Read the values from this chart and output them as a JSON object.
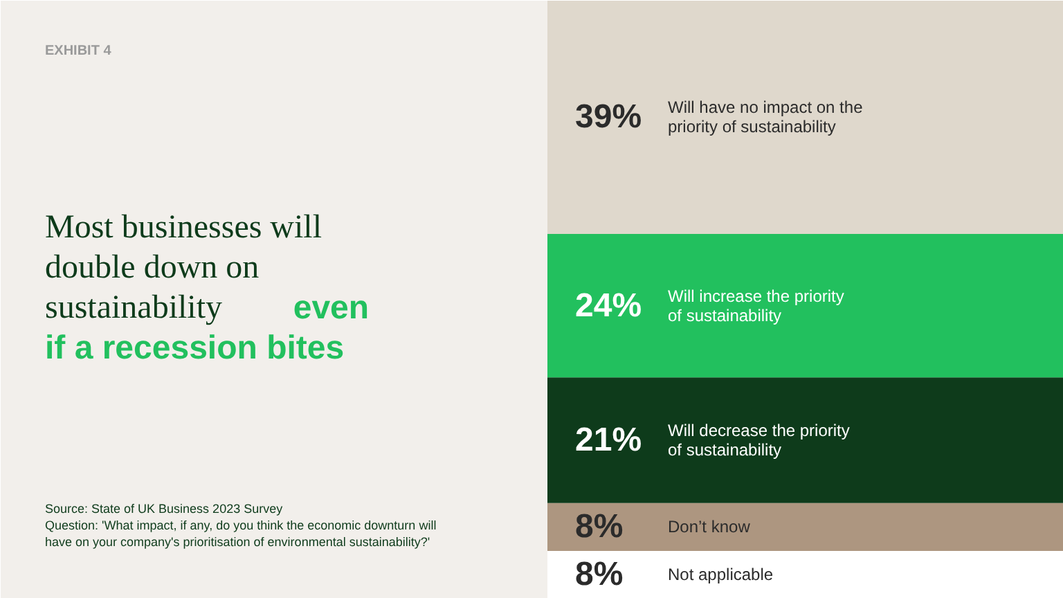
{
  "chart_data": {
    "type": "bar",
    "stacked": true,
    "title": "Most businesses will double down on sustainability",
    "subtitle": "even if a recession bites",
    "categories": [
      null
    ],
    "series": [
      {
        "name": "Not applicable",
        "color": "#ffffff",
        "values": [
          8
        ],
        "value_labels": [
          "8%"
        ]
      },
      {
        "name": "Don’t know",
        "color": "#ad9680",
        "values": [
          8
        ],
        "value_labels": [
          "8%"
        ]
      },
      {
        "name": "Will decrease the priority of sustainability",
        "color": "#0e3b1b",
        "values": [
          21
        ],
        "value_labels": [
          "21%"
        ]
      },
      {
        "name": "Will increase the priority of sustainability",
        "color": "#22c05e",
        "values": [
          24
        ],
        "value_labels": [
          "24%"
        ]
      },
      {
        "name": "Will have no impact on the priority of sustainability",
        "color": "#dfd8cc",
        "values": [
          39
        ],
        "value_labels": [
          "39%"
        ]
      }
    ],
    "legend": false,
    "grid": false,
    "annotations": [
      "EXHIBIT 4",
      "Source: State of UK Business 2023 Survey",
      "Question: 'What impact, if any, do you think the economic downturn will have on your company's prioritisation of environmental sustainability?'"
    ]
  }
}
